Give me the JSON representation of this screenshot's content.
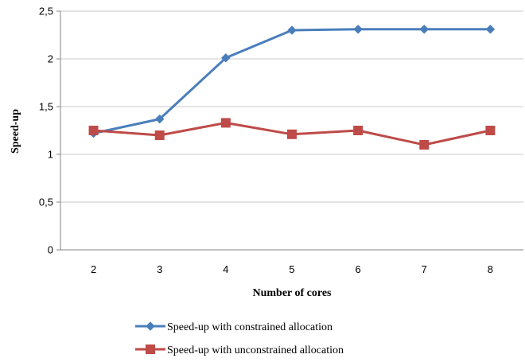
{
  "chart_data": {
    "type": "line",
    "title": "",
    "xlabel": "Number of cores",
    "ylabel": "Speed-up",
    "categories": [
      "2",
      "3",
      "4",
      "5",
      "6",
      "7",
      "8"
    ],
    "y_tick_labels": [
      "0",
      "0,5",
      "1",
      "1,5",
      "2",
      "2,5"
    ],
    "y_tick_values": [
      0,
      0.5,
      1,
      1.5,
      2,
      2.5
    ],
    "ylim": [
      0,
      2.5
    ],
    "grid": "horizontal",
    "legend_position": "bottom",
    "series": [
      {
        "name": "Speed-up with constrained allocation",
        "values": [
          1.22,
          1.37,
          2.01,
          2.3,
          2.31,
          2.31,
          2.31
        ],
        "color": "#4a7ebb",
        "marker": "diamond"
      },
      {
        "name": "Speed-up with unconstrained allocation",
        "values": [
          1.25,
          1.2,
          1.33,
          1.21,
          1.25,
          1.1,
          1.25
        ],
        "color": "#be4b48",
        "marker": "square"
      }
    ]
  }
}
